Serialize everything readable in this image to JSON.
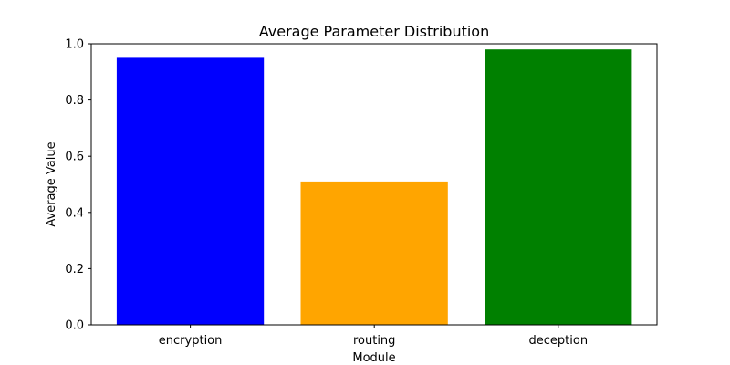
{
  "chart_data": {
    "type": "bar",
    "title": "Average Parameter Distribution",
    "xlabel": "Module",
    "ylabel": "Average Value",
    "categories": [
      "encryption",
      "routing",
      "deception"
    ],
    "values": [
      0.95,
      0.51,
      0.98
    ],
    "colors": [
      "#0000ff",
      "#ffa500",
      "#008000"
    ],
    "ylim": [
      0,
      1.0
    ],
    "yticks": [
      "0.0",
      "0.2",
      "0.4",
      "0.6",
      "0.8",
      "1.0"
    ],
    "grid": false,
    "legend": "none"
  }
}
